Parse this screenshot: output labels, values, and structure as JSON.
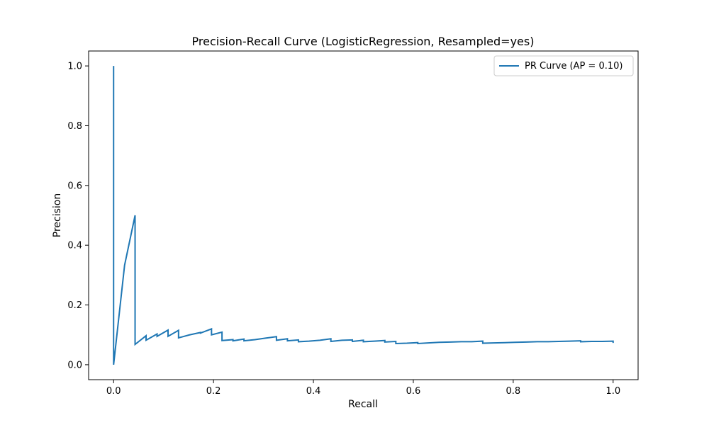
{
  "chart_data": {
    "type": "line",
    "title": "Precision-Recall Curve (LogisticRegression, Resampled=yes)",
    "xlabel": "Recall",
    "ylabel": "Precision",
    "xlim": [
      -0.05,
      1.05
    ],
    "ylim": [
      -0.05,
      1.05
    ],
    "xticks": [
      0.0,
      0.2,
      0.4,
      0.6,
      0.8,
      1.0
    ],
    "xtick_labels": [
      "0.0",
      "0.2",
      "0.4",
      "0.6",
      "0.8",
      "1.0"
    ],
    "yticks": [
      0.0,
      0.2,
      0.4,
      0.6,
      0.8,
      1.0
    ],
    "ytick_labels": [
      "0.0",
      "0.2",
      "0.4",
      "0.6",
      "0.8",
      "1.0"
    ],
    "grid": false,
    "legend_position": "upper-right",
    "series": [
      {
        "name": "PR Curve (AP = 0.10)",
        "color": "#1f77b4",
        "x": [
          0.0,
          0.0,
          0.0,
          0.022,
          0.043,
          0.043,
          0.065,
          0.065,
          0.087,
          0.087,
          0.109,
          0.109,
          0.13,
          0.13,
          0.152,
          0.174,
          0.174,
          0.196,
          0.196,
          0.217,
          0.217,
          0.239,
          0.239,
          0.261,
          0.261,
          0.283,
          0.304,
          0.326,
          0.326,
          0.348,
          0.348,
          0.37,
          0.37,
          0.391,
          0.413,
          0.435,
          0.435,
          0.457,
          0.478,
          0.478,
          0.5,
          0.5,
          0.522,
          0.543,
          0.543,
          0.565,
          0.565,
          0.587,
          0.609,
          0.609,
          0.63,
          0.652,
          0.674,
          0.696,
          0.717,
          0.739,
          0.739,
          0.761,
          0.783,
          0.804,
          0.826,
          0.848,
          0.87,
          0.891,
          0.913,
          0.935,
          0.935,
          0.957,
          0.978,
          1.0,
          1.0
        ],
        "y": [
          1.0,
          0.0,
          0.0,
          0.333,
          0.5,
          0.068,
          0.097,
          0.082,
          0.103,
          0.095,
          0.116,
          0.095,
          0.115,
          0.09,
          0.1,
          0.108,
          0.106,
          0.12,
          0.1,
          0.109,
          0.081,
          0.084,
          0.08,
          0.086,
          0.08,
          0.084,
          0.089,
          0.094,
          0.082,
          0.087,
          0.08,
          0.083,
          0.077,
          0.079,
          0.082,
          0.087,
          0.078,
          0.082,
          0.083,
          0.078,
          0.082,
          0.077,
          0.079,
          0.081,
          0.076,
          0.078,
          0.071,
          0.072,
          0.074,
          0.071,
          0.073,
          0.075,
          0.076,
          0.077,
          0.077,
          0.079,
          0.072,
          0.073,
          0.074,
          0.075,
          0.076,
          0.077,
          0.077,
          0.078,
          0.079,
          0.08,
          0.077,
          0.078,
          0.078,
          0.079,
          0.073
        ]
      }
    ]
  }
}
